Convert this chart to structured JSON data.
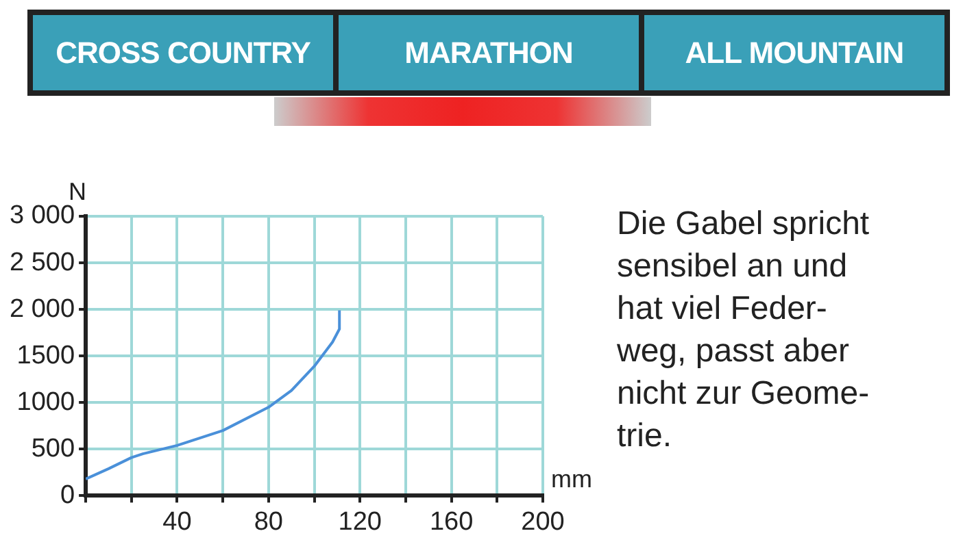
{
  "chart_data": {
    "type": "line",
    "xlabel": "mm",
    "ylabel": "N",
    "annotations": [
      "CROSS COUNTRY",
      "MARATHON",
      "ALL MOUNTAIN",
      "Die Gabel spricht\nsensibel an und\nhat viel Feder-\nweg, passt aber\nnicht zur Geome-\ntrie."
    ],
    "series": [
      {
        "color": "#4a90d9",
        "x": [
          0,
          10,
          20,
          25,
          40,
          60,
          80,
          90,
          100,
          108,
          111,
          111
        ],
        "values": [
          180,
          290,
          410,
          450,
          540,
          700,
          950,
          1130,
          1390,
          1650,
          1790,
          1990
        ]
      }
    ],
    "xlim": [
      0,
      200
    ],
    "xticks": [
      {
        "value": 0,
        "label": null
      },
      {
        "value": 20,
        "label": null
      },
      40,
      {
        "value": 60,
        "label": null
      },
      80,
      {
        "value": 100,
        "label": null
      },
      120,
      {
        "value": 140,
        "label": null
      },
      160,
      {
        "value": 180,
        "label": null
      },
      200
    ],
    "ylim": [
      0,
      3000
    ],
    "yticks": [
      0,
      500,
      1000,
      1500,
      {
        "value": 2000,
        "label": "2 000"
      },
      {
        "value": 2500,
        "label": "2 500"
      },
      {
        "value": 3000,
        "label": "3 000"
      }
    ],
    "grid": true,
    "marker": "none",
    "line_style": "solid",
    "legend": false
  }
}
